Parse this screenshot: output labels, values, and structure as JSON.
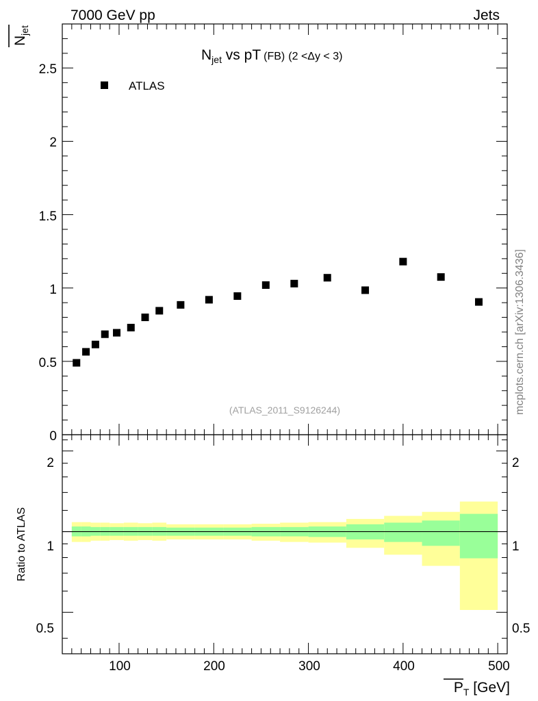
{
  "header": {
    "energy_label": "7000 GeV pp",
    "category_label": "Jets",
    "side_label": "mcplots.cern.ch [arXiv:1306.3436]",
    "analysis_label": "(ATLAS_2011_S9126244)"
  },
  "chart_data": [
    {
      "type": "scatter",
      "title_main": "N",
      "title_sub": "jet",
      "title_rest": " vs pT",
      "title_tag": "(FB)",
      "title_range": "(2 <Δy < 3)",
      "ylabel_main": "N",
      "ylabel_sub": "jet",
      "xlim": [
        40,
        510
      ],
      "ylim": [
        0,
        2.8
      ],
      "yticks": [
        0.5,
        1,
        1.5,
        2,
        2.5
      ],
      "ytick_labels": [
        "0.5",
        "1",
        "1.5",
        "2",
        "2.5"
      ],
      "ytick_zero_label": "0",
      "legend": "ATLAS",
      "legend_position": "top-left",
      "series": [
        {
          "name": "ATLAS",
          "x": [
            55,
            65,
            75,
            85,
            97.5,
            112.5,
            127.5,
            142.5,
            165,
            195,
            225,
            255,
            285,
            320,
            360,
            400,
            440,
            480
          ],
          "y": [
            0.49,
            0.565,
            0.615,
            0.685,
            0.695,
            0.73,
            0.8,
            0.845,
            0.885,
            0.92,
            0.945,
            1.02,
            1.03,
            1.07,
            0.985,
            1.18,
            1.075,
            0.905
          ]
        }
      ]
    },
    {
      "type": "area",
      "ylabel": "Ratio to ATLAS",
      "xlabel_main": "P",
      "xlabel_sub": "T",
      "xlabel_rest": " [GeV]",
      "xlim": [
        40,
        510
      ],
      "ylim": [
        0.35,
        2.3
      ],
      "yticks": [
        0.5,
        1,
        2
      ],
      "ytick_labels": [
        "0.5",
        "1",
        "2"
      ],
      "xticks": [
        100,
        200,
        300,
        400,
        500
      ],
      "xtick_labels": [
        "100",
        "200",
        "300",
        "400",
        "500"
      ],
      "reference_line": 1,
      "bins": [
        {
          "x0": 50,
          "x1": 60,
          "inner": [
            0.96,
            1.045
          ],
          "outer": [
            0.915,
            1.085
          ]
        },
        {
          "x0": 60,
          "x1": 70,
          "inner": [
            0.96,
            1.045
          ],
          "outer": [
            0.915,
            1.085
          ]
        },
        {
          "x0": 70,
          "x1": 80,
          "inner": [
            0.965,
            1.04
          ],
          "outer": [
            0.925,
            1.08
          ]
        },
        {
          "x0": 80,
          "x1": 90,
          "inner": [
            0.965,
            1.04
          ],
          "outer": [
            0.925,
            1.08
          ]
        },
        {
          "x0": 90,
          "x1": 105,
          "inner": [
            0.965,
            1.04
          ],
          "outer": [
            0.93,
            1.075
          ]
        },
        {
          "x0": 105,
          "x1": 120,
          "inner": [
            0.965,
            1.04
          ],
          "outer": [
            0.925,
            1.08
          ]
        },
        {
          "x0": 120,
          "x1": 135,
          "inner": [
            0.965,
            1.04
          ],
          "outer": [
            0.93,
            1.075
          ]
        },
        {
          "x0": 135,
          "x1": 150,
          "inner": [
            0.965,
            1.04
          ],
          "outer": [
            0.925,
            1.08
          ]
        },
        {
          "x0": 150,
          "x1": 180,
          "inner": [
            0.965,
            1.035
          ],
          "outer": [
            0.935,
            1.065
          ]
        },
        {
          "x0": 180,
          "x1": 210,
          "inner": [
            0.965,
            1.035
          ],
          "outer": [
            0.935,
            1.065
          ]
        },
        {
          "x0": 210,
          "x1": 240,
          "inner": [
            0.965,
            1.035
          ],
          "outer": [
            0.935,
            1.065
          ]
        },
        {
          "x0": 240,
          "x1": 270,
          "inner": [
            0.96,
            1.04
          ],
          "outer": [
            0.925,
            1.07
          ]
        },
        {
          "x0": 270,
          "x1": 300,
          "inner": [
            0.96,
            1.04
          ],
          "outer": [
            0.915,
            1.08
          ]
        },
        {
          "x0": 300,
          "x1": 340,
          "inner": [
            0.955,
            1.045
          ],
          "outer": [
            0.91,
            1.085
          ]
        },
        {
          "x0": 340,
          "x1": 380,
          "inner": [
            0.935,
            1.065
          ],
          "outer": [
            0.87,
            1.115
          ]
        },
        {
          "x0": 380,
          "x1": 420,
          "inner": [
            0.915,
            1.08
          ],
          "outer": [
            0.82,
            1.145
          ]
        },
        {
          "x0": 420,
          "x1": 460,
          "inner": [
            0.885,
            1.1
          ],
          "outer": [
            0.745,
            1.185
          ]
        },
        {
          "x0": 460,
          "x1": 500,
          "inner": [
            0.795,
            1.165
          ],
          "outer": [
            0.51,
            1.295
          ]
        }
      ]
    }
  ],
  "colors": {
    "inner_band": "#99ff99",
    "outer_band": "#ffff99",
    "marker": "#000000",
    "side_label": "#808080",
    "analysis_label": "#a0a0a0"
  }
}
